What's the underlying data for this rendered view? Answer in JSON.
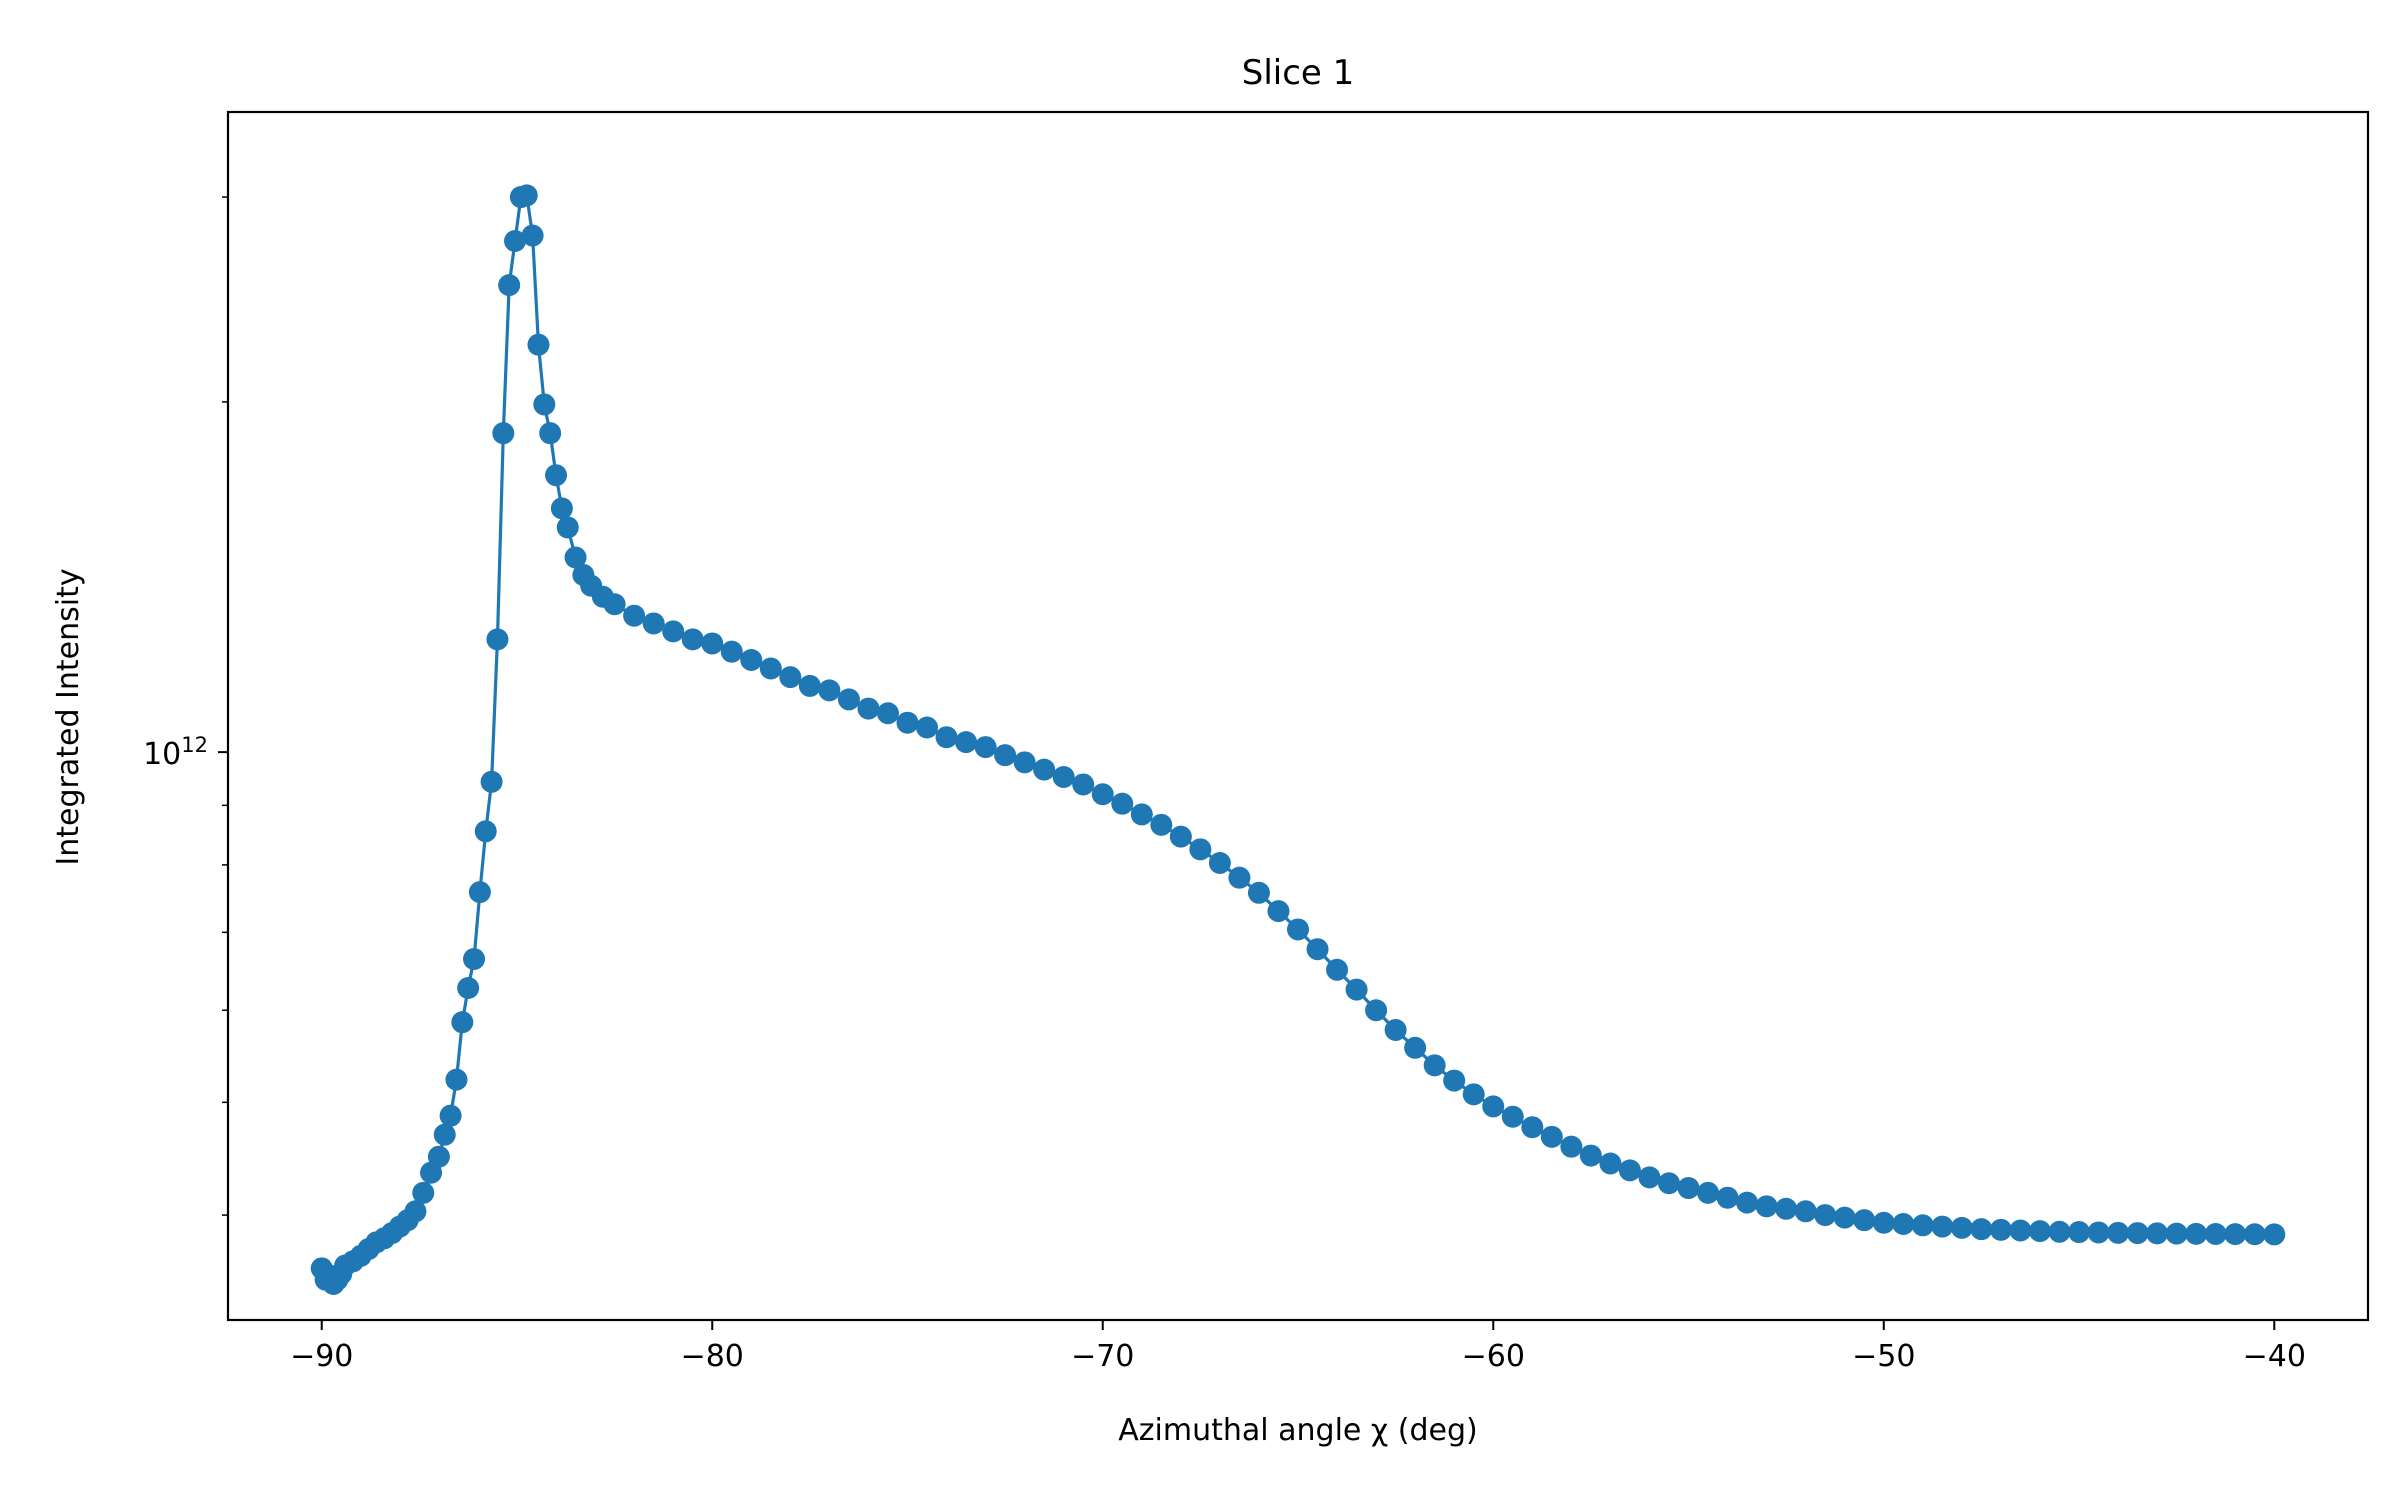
{
  "chart_data": {
    "type": "line",
    "title": "Slice 1",
    "xlabel": "Azimuthal angle χ (deg)",
    "ylabel": "Integrated Intensity",
    "y_scale": "log",
    "xlim": [
      -92.4,
      -37.6
    ],
    "ylim": [
      325000000000,
      3550000000000
    ],
    "x_ticks": [
      -90,
      -80,
      -70,
      -60,
      -50,
      -40
    ],
    "x_tick_labels": [
      "−90",
      "−80",
      "−70",
      "−60",
      "−50",
      "−40"
    ],
    "y_major_ticks": [
      {
        "value": 1000000000000,
        "base": "10",
        "exponent": "12"
      }
    ],
    "y_minor_ticks": [
      400000000000,
      500000000000,
      600000000000,
      700000000000,
      800000000000,
      900000000000,
      2000000000000,
      3000000000000
    ],
    "grid": false,
    "legend": "none",
    "series": [
      {
        "color": "#1f77b4",
        "marker": "circle",
        "points": [
          [
            -90.0,
            360000000000
          ],
          [
            -89.9,
            352000000000
          ],
          [
            -89.8,
            355000000000
          ],
          [
            -89.7,
            349000000000
          ],
          [
            -89.6,
            352000000000
          ],
          [
            -89.5,
            356000000000
          ],
          [
            -89.4,
            362000000000
          ],
          [
            -89.2,
            365000000000
          ],
          [
            -89.0,
            369000000000
          ],
          [
            -88.8,
            374000000000
          ],
          [
            -88.6,
            379000000000
          ],
          [
            -88.4,
            382000000000
          ],
          [
            -88.2,
            386000000000
          ],
          [
            -88.0,
            391000000000
          ],
          [
            -87.8,
            396000000000
          ],
          [
            -87.6,
            403000000000
          ],
          [
            -87.4,
            418000000000
          ],
          [
            -87.2,
            435000000000
          ],
          [
            -87.0,
            449000000000
          ],
          [
            -86.85,
            469000000000
          ],
          [
            -86.7,
            487000000000
          ],
          [
            -86.55,
            523000000000
          ],
          [
            -86.4,
            586000000000
          ],
          [
            -86.25,
            627000000000
          ],
          [
            -86.1,
            664000000000
          ],
          [
            -85.95,
            758000000000
          ],
          [
            -85.8,
            855000000000
          ],
          [
            -85.65,
            943000000000
          ],
          [
            -85.5,
            1250000000000
          ],
          [
            -85.35,
            1880000000000
          ],
          [
            -85.2,
            2520000000000
          ],
          [
            -85.05,
            2750000000000
          ],
          [
            -84.9,
            3000000000000
          ],
          [
            -84.75,
            3010000000000
          ],
          [
            -84.6,
            2780000000000
          ],
          [
            -84.45,
            2240000000000
          ],
          [
            -84.3,
            1990000000000
          ],
          [
            -84.15,
            1880000000000
          ],
          [
            -84.0,
            1730000000000
          ],
          [
            -83.85,
            1620000000000
          ],
          [
            -83.7,
            1560000000000
          ],
          [
            -83.5,
            1470000000000
          ],
          [
            -83.3,
            1420000000000
          ],
          [
            -83.1,
            1390000000000
          ],
          [
            -82.8,
            1360000000000
          ],
          [
            -82.5,
            1340000000000
          ],
          [
            -82.0,
            1310000000000
          ],
          [
            -81.5,
            1290000000000
          ],
          [
            -81.0,
            1270000000000
          ],
          [
            -80.5,
            1250000000000
          ],
          [
            -80.0,
            1240000000000
          ],
          [
            -79.5,
            1220000000000
          ],
          [
            -79.0,
            1200000000000
          ],
          [
            -78.5,
            1180000000000
          ],
          [
            -78.0,
            1160000000000
          ],
          [
            -77.5,
            1140000000000
          ],
          [
            -77.0,
            1130000000000
          ],
          [
            -76.5,
            1110000000000
          ],
          [
            -76.0,
            1090000000000
          ],
          [
            -75.5,
            1080000000000
          ],
          [
            -75.0,
            1060000000000
          ],
          [
            -74.5,
            1050000000000
          ],
          [
            -74.0,
            1030000000000
          ],
          [
            -73.5,
            1020000000000
          ],
          [
            -73.0,
            1010000000000
          ],
          [
            -72.5,
            994000000000
          ],
          [
            -72.0,
            980000000000
          ],
          [
            -71.5,
            966000000000
          ],
          [
            -71.0,
            952000000000
          ],
          [
            -70.5,
            938000000000
          ],
          [
            -70.0,
            920000000000
          ],
          [
            -69.5,
            903000000000
          ],
          [
            -69.0,
            884000000000
          ],
          [
            -68.5,
            866000000000
          ],
          [
            -68.0,
            846000000000
          ],
          [
            -67.5,
            825000000000
          ],
          [
            -67.0,
            803000000000
          ],
          [
            -66.5,
            780000000000
          ],
          [
            -66.0,
            757000000000
          ],
          [
            -65.5,
            730000000000
          ],
          [
            -65.0,
            704000000000
          ],
          [
            -64.5,
            677000000000
          ],
          [
            -64.0,
            650000000000
          ],
          [
            -63.5,
            625000000000
          ],
          [
            -63.0,
            600000000000
          ],
          [
            -62.5,
            577000000000
          ],
          [
            -62.0,
            557000000000
          ],
          [
            -61.5,
            538000000000
          ],
          [
            -61.0,
            522000000000
          ],
          [
            -60.5,
            508000000000
          ],
          [
            -60.0,
            496000000000
          ],
          [
            -59.5,
            486000000000
          ],
          [
            -59.0,
            476000000000
          ],
          [
            -58.5,
            467000000000
          ],
          [
            -58.0,
            458000000000
          ],
          [
            -57.5,
            450000000000
          ],
          [
            -57.0,
            443000000000
          ],
          [
            -56.5,
            437000000000
          ],
          [
            -56.0,
            431000000000
          ],
          [
            -55.5,
            426000000000
          ],
          [
            -55.0,
            422000000000
          ],
          [
            -54.5,
            418000000000
          ],
          [
            -54.0,
            414000000000
          ],
          [
            -53.5,
            410000000000
          ],
          [
            -53.0,
            407000000000
          ],
          [
            -52.5,
            405000000000
          ],
          [
            -52.0,
            403000000000
          ],
          [
            -51.5,
            400000000000
          ],
          [
            -51.0,
            398000000000
          ],
          [
            -50.5,
            396000000000
          ],
          [
            -50.0,
            394000000000
          ],
          [
            -49.5,
            393000000000
          ],
          [
            -49.0,
            392000000000
          ],
          [
            -48.5,
            391000000000
          ],
          [
            -48.0,
            390000000000
          ],
          [
            -47.5,
            389000000000
          ],
          [
            -47.0,
            388500000000
          ],
          [
            -46.5,
            388000000000
          ],
          [
            -46.0,
            387500000000
          ],
          [
            -45.5,
            387000000000
          ],
          [
            -45.0,
            386800000000
          ],
          [
            -44.5,
            386500000000
          ],
          [
            -44.0,
            386200000000
          ],
          [
            -43.5,
            386000000000
          ],
          [
            -43.0,
            385800000000
          ],
          [
            -42.5,
            385600000000
          ],
          [
            -42.0,
            385400000000
          ],
          [
            -41.5,
            385300000000
          ],
          [
            -41.0,
            385200000000
          ],
          [
            -40.5,
            385100000000
          ],
          [
            -40.0,
            385000000000
          ]
        ]
      }
    ]
  }
}
